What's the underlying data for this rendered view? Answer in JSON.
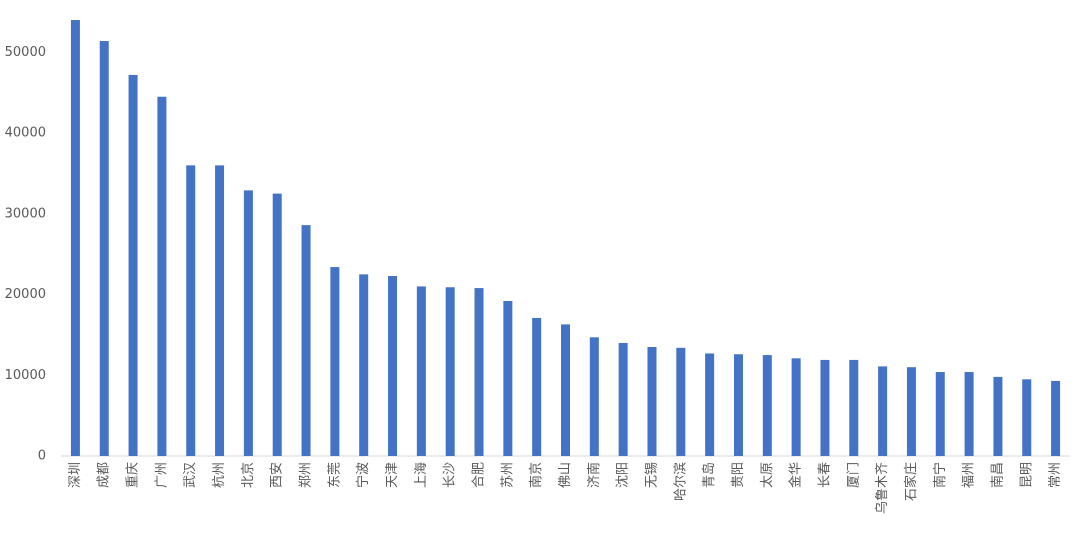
{
  "chart_data": {
    "type": "bar",
    "categories": [
      "深圳",
      "成都",
      "重庆",
      "广州",
      "武汉",
      "杭州",
      "北京",
      "西安",
      "郑州",
      "东莞",
      "宁波",
      "天津",
      "上海",
      "长沙",
      "合肥",
      "苏州",
      "南京",
      "佛山",
      "济南",
      "沈阳",
      "无锡",
      "哈尔滨",
      "青岛",
      "贵阳",
      "太原",
      "金华",
      "长春",
      "厦门",
      "乌鲁木齐",
      "石家庄",
      "南宁",
      "福州",
      "南昌",
      "昆明",
      "常州"
    ],
    "values": [
      54000,
      51400,
      47200,
      44500,
      36000,
      36000,
      32900,
      32500,
      28600,
      23400,
      22500,
      22300,
      21000,
      20900,
      20800,
      19200,
      17100,
      16300,
      14700,
      14000,
      13500,
      13400,
      12700,
      12600,
      12500,
      12100,
      11900,
      11900,
      11100,
      11000,
      10400,
      10400,
      9800,
      9500,
      9300
    ],
    "color": "#4472c4",
    "ylim": [
      0,
      54500
    ],
    "yticks": [
      0,
      10000,
      20000,
      30000,
      40000,
      50000
    ],
    "grid": false
  }
}
